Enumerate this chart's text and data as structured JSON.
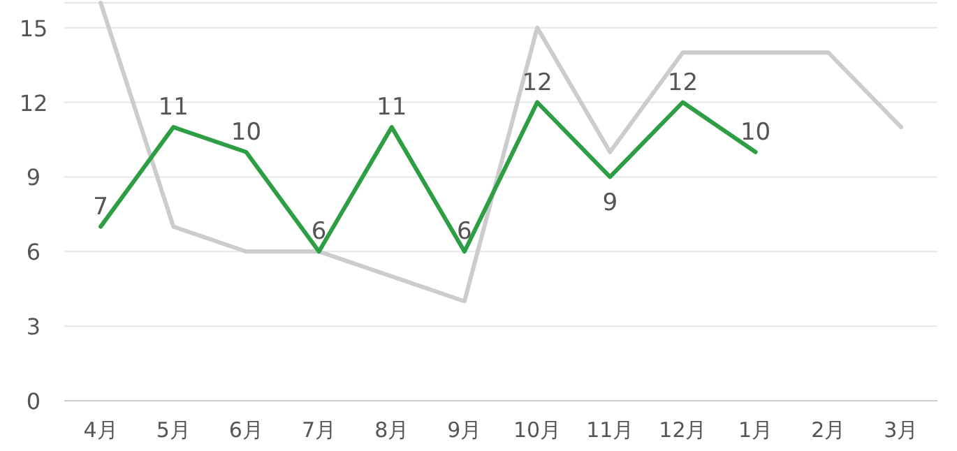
{
  "chart_data": {
    "type": "line",
    "categories": [
      "4月",
      "5月",
      "6月",
      "7月",
      "8月",
      "9月",
      "10月",
      "11月",
      "12月",
      "1月",
      "2月",
      "3月"
    ],
    "series": [
      {
        "color": "#cccccc",
        "values": [
          16,
          7,
          6,
          6,
          5,
          4,
          15,
          10,
          14,
          14,
          14,
          11
        ]
      },
      {
        "color": "#2e9e44",
        "values": [
          7,
          11,
          10,
          6,
          11,
          6,
          12,
          9,
          12,
          10,
          null,
          null
        ],
        "data_labels": true
      }
    ],
    "ylim": [
      0,
      16
    ],
    "yticks": [
      0,
      3,
      6,
      9,
      12,
      15,
      {
        "value": 16,
        "label": null
      }
    ],
    "grid": "y",
    "marker": "none",
    "line_style": "solid"
  }
}
